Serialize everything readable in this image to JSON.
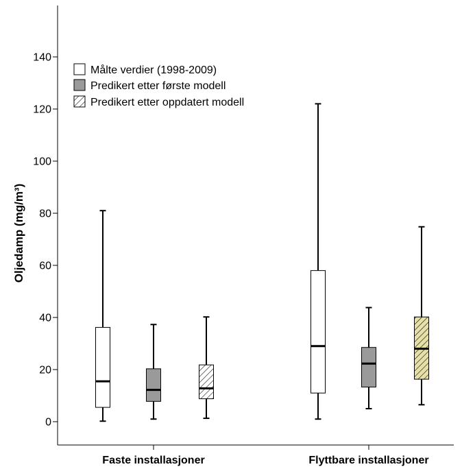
{
  "chart_data": {
    "type": "boxplot",
    "ylabel": "Oljedamp (mg/m³)",
    "xlabel": "",
    "ylim": [
      -7,
      155
    ],
    "yticks": [
      0,
      20,
      40,
      60,
      80,
      100,
      120,
      140
    ],
    "grid": false,
    "legend_position": "top-left",
    "categories": [
      "Faste installasjoner",
      "Flyttbare installasjoner"
    ],
    "series": [
      {
        "name": "Målte verdier (1998-2009)",
        "fill": "#ffffff",
        "pattern": "none",
        "stats": [
          {
            "min": 0.2,
            "q1": 5.5,
            "median": 15.5,
            "q3": 36.2,
            "max": 81.0
          },
          {
            "min": 1.0,
            "q1": 11.0,
            "median": 29.0,
            "q3": 58.0,
            "max": 122.0
          }
        ]
      },
      {
        "name": "Predikert etter første modell",
        "fill": "#9a9a9a",
        "pattern": "none",
        "stats": [
          {
            "min": 1.0,
            "q1": 7.8,
            "median": 12.2,
            "q3": 20.3,
            "max": 37.3
          },
          {
            "min": 5.0,
            "q1": 13.3,
            "median": 22.3,
            "q3": 28.5,
            "max": 43.8
          }
        ]
      },
      {
        "name": "Predikert etter oppdatert modell",
        "fill": "#ffffff",
        "pattern": "hatch",
        "stats": [
          {
            "min": 1.3,
            "q1": 8.8,
            "median": 12.8,
            "q3": 21.8,
            "max": 40.2,
            "fill": "#ffffff"
          },
          {
            "min": 6.5,
            "q1": 16.3,
            "median": 28.0,
            "q3": 40.2,
            "max": 74.8,
            "fill": "#e6dfa8"
          }
        ]
      }
    ]
  },
  "colors": {
    "axis": "#000000",
    "stroke": "#000000",
    "hatch": "#000000",
    "background": "#ffffff"
  }
}
